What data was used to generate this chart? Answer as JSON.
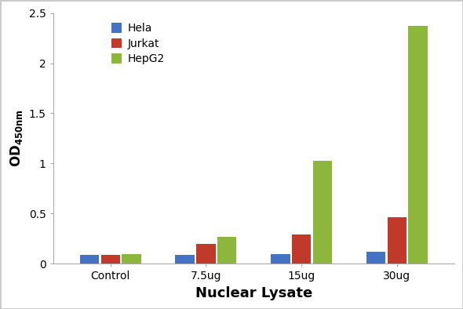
{
  "categories": [
    "Control",
    "7.5ug",
    "15ug",
    "30ug"
  ],
  "series": {
    "Hela": [
      0.09,
      0.09,
      0.1,
      0.12
    ],
    "Jurkat": [
      0.09,
      0.2,
      0.29,
      0.46
    ],
    "HepG2": [
      0.1,
      0.27,
      1.03,
      2.37
    ]
  },
  "colors": {
    "Hela": "#4472c4",
    "Jurkat": "#c0392b",
    "HepG2": "#8db63c"
  },
  "xlabel": "Nuclear Lysate",
  "ylim": [
    0,
    2.5
  ],
  "yticks": [
    0,
    0.5,
    1.0,
    1.5,
    2.0,
    2.5
  ],
  "ytick_labels": [
    "0",
    "0.5",
    "1",
    "1.5",
    "2",
    "2.5"
  ],
  "bar_width": 0.2,
  "legend_order": [
    "Hela",
    "Jurkat",
    "HepG2"
  ],
  "background_color": "#ffffff",
  "border_color": "#cccccc",
  "xlabel_fontsize": 13,
  "ylabel_fontsize": 12,
  "tick_fontsize": 10,
  "legend_fontsize": 10,
  "spine_color": "#aaaaaa",
  "bar_gap": 0.02
}
